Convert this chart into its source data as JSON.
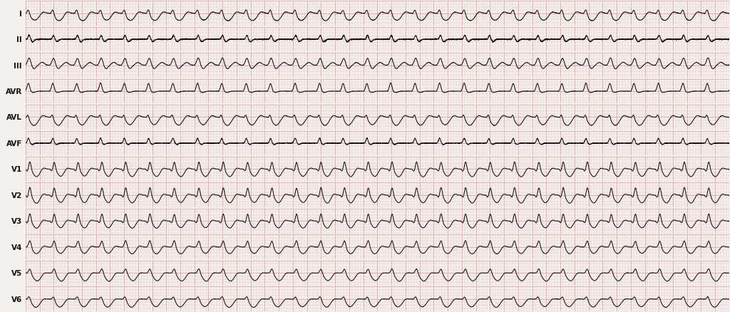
{
  "leads": [
    "I",
    "II",
    "III",
    "AVR",
    "AVL",
    "AVF",
    "V1",
    "V2",
    "V3",
    "V4",
    "V5",
    "V6"
  ],
  "background_color": "#f5f0ec",
  "grid_dot_color": "#d4a0a0",
  "grid_major_color": "#cc8888",
  "line_color": "#111111",
  "label_color": "#111111",
  "fig_width": 10.24,
  "fig_height": 4.39,
  "heart_rate": 175,
  "label_fontsize": 7.5,
  "lead_configs": {
    "I": {
      "peak": 0.3,
      "neg": -0.3,
      "shape": "I"
    },
    "II": {
      "peak": 0.08,
      "neg": -0.08,
      "shape": "II"
    },
    "III": {
      "peak": 0.35,
      "neg": -0.25,
      "shape": "III"
    },
    "AVR": {
      "peak": 0.38,
      "neg": -0.15,
      "shape": "AVR"
    },
    "AVL": {
      "peak": 0.4,
      "neg": -0.4,
      "shape": "AVL"
    },
    "AVF": {
      "peak": 0.12,
      "neg": -0.1,
      "shape": "AVF"
    },
    "V1": {
      "peak": 0.65,
      "neg": -0.6,
      "shape": "V1"
    },
    "V2": {
      "peak": 0.7,
      "neg": -0.65,
      "shape": "V2"
    },
    "V3": {
      "peak": 0.72,
      "neg": -0.62,
      "shape": "V3"
    },
    "V4": {
      "peak": 0.55,
      "neg": -0.5,
      "shape": "V4"
    },
    "V5": {
      "peak": 0.5,
      "neg": -0.55,
      "shape": "V5"
    },
    "V6": {
      "peak": 0.45,
      "neg": -0.45,
      "shape": "V6"
    }
  }
}
